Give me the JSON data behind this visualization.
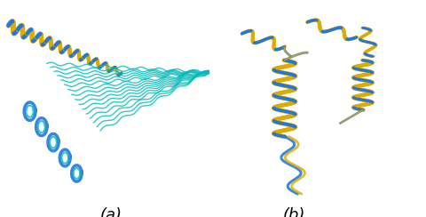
{
  "label_a": "(a)",
  "label_b": "(b)",
  "background_color": "#ffffff",
  "label_fontsize": 13,
  "colors": {
    "blue": "#2277dd",
    "yellow": "#ddaa00",
    "cyan": "#00bbbb"
  },
  "figsize": [
    4.8,
    2.44
  ],
  "dpi": 100
}
